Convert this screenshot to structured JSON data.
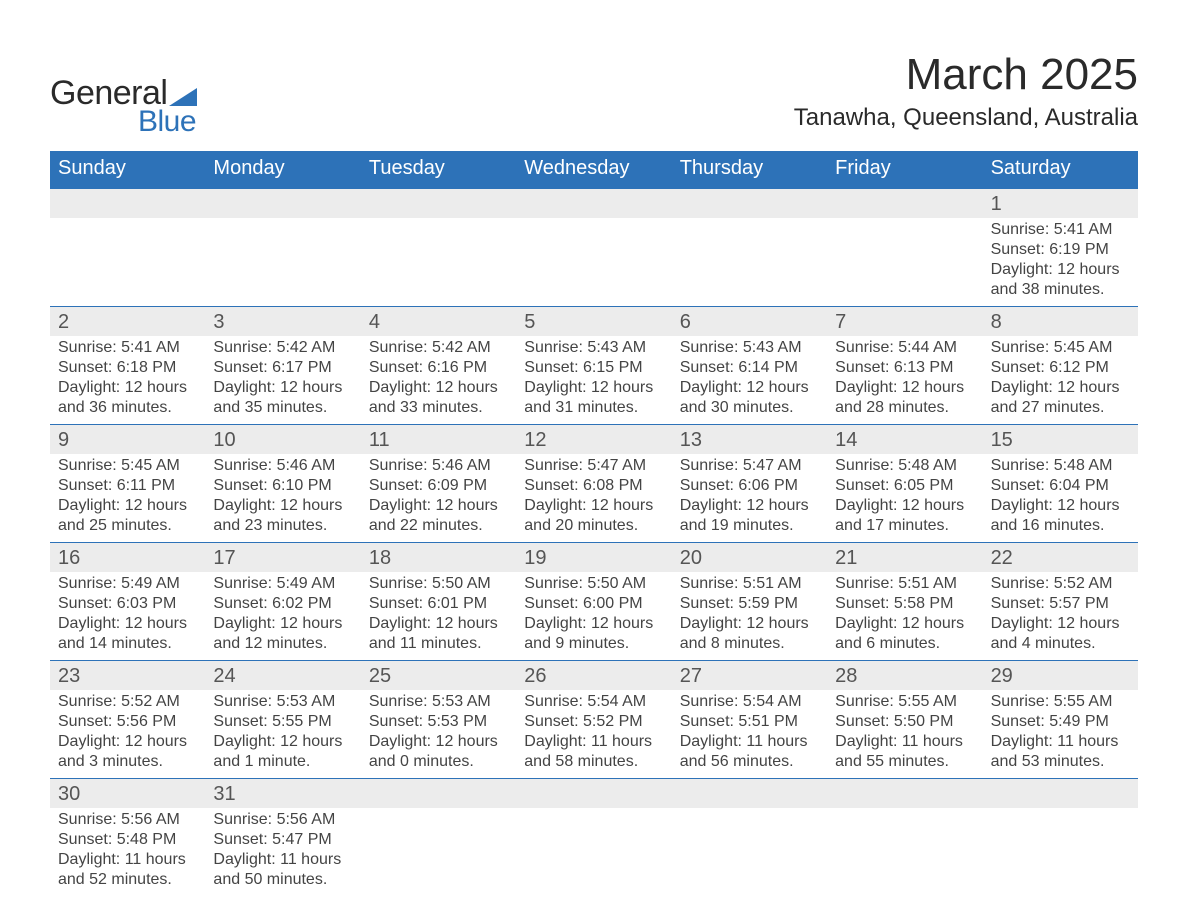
{
  "brand": {
    "word1": "General",
    "word2": "Blue",
    "accent_color": "#2d72b8"
  },
  "title": {
    "month": "March 2025",
    "location": "Tanawha, Queensland, Australia"
  },
  "calendar": {
    "type": "table",
    "columns": [
      "Sunday",
      "Monday",
      "Tuesday",
      "Wednesday",
      "Thursday",
      "Friday",
      "Saturday"
    ],
    "header_bg": "#2d72b8",
    "header_fg": "#ffffff",
    "daynum_bg": "#ececec",
    "divider_color": "#2d72b8",
    "text_color": "#444444",
    "daynum_color": "#555555",
    "title_fontsize": 44,
    "location_fontsize": 24,
    "header_fontsize": 20,
    "daynum_fontsize": 20,
    "body_fontsize": 16,
    "first_day_grid_index": 6,
    "days": [
      {
        "n": "1",
        "sunrise": "5:41 AM",
        "sunset": "6:19 PM",
        "daylight_h": "12",
        "daylight_m": "38"
      },
      {
        "n": "2",
        "sunrise": "5:41 AM",
        "sunset": "6:18 PM",
        "daylight_h": "12",
        "daylight_m": "36"
      },
      {
        "n": "3",
        "sunrise": "5:42 AM",
        "sunset": "6:17 PM",
        "daylight_h": "12",
        "daylight_m": "35"
      },
      {
        "n": "4",
        "sunrise": "5:42 AM",
        "sunset": "6:16 PM",
        "daylight_h": "12",
        "daylight_m": "33"
      },
      {
        "n": "5",
        "sunrise": "5:43 AM",
        "sunset": "6:15 PM",
        "daylight_h": "12",
        "daylight_m": "31"
      },
      {
        "n": "6",
        "sunrise": "5:43 AM",
        "sunset": "6:14 PM",
        "daylight_h": "12",
        "daylight_m": "30"
      },
      {
        "n": "7",
        "sunrise": "5:44 AM",
        "sunset": "6:13 PM",
        "daylight_h": "12",
        "daylight_m": "28"
      },
      {
        "n": "8",
        "sunrise": "5:45 AM",
        "sunset": "6:12 PM",
        "daylight_h": "12",
        "daylight_m": "27"
      },
      {
        "n": "9",
        "sunrise": "5:45 AM",
        "sunset": "6:11 PM",
        "daylight_h": "12",
        "daylight_m": "25"
      },
      {
        "n": "10",
        "sunrise": "5:46 AM",
        "sunset": "6:10 PM",
        "daylight_h": "12",
        "daylight_m": "23"
      },
      {
        "n": "11",
        "sunrise": "5:46 AM",
        "sunset": "6:09 PM",
        "daylight_h": "12",
        "daylight_m": "22"
      },
      {
        "n": "12",
        "sunrise": "5:47 AM",
        "sunset": "6:08 PM",
        "daylight_h": "12",
        "daylight_m": "20"
      },
      {
        "n": "13",
        "sunrise": "5:47 AM",
        "sunset": "6:06 PM",
        "daylight_h": "12",
        "daylight_m": "19"
      },
      {
        "n": "14",
        "sunrise": "5:48 AM",
        "sunset": "6:05 PM",
        "daylight_h": "12",
        "daylight_m": "17"
      },
      {
        "n": "15",
        "sunrise": "5:48 AM",
        "sunset": "6:04 PM",
        "daylight_h": "12",
        "daylight_m": "16"
      },
      {
        "n": "16",
        "sunrise": "5:49 AM",
        "sunset": "6:03 PM",
        "daylight_h": "12",
        "daylight_m": "14"
      },
      {
        "n": "17",
        "sunrise": "5:49 AM",
        "sunset": "6:02 PM",
        "daylight_h": "12",
        "daylight_m": "12"
      },
      {
        "n": "18",
        "sunrise": "5:50 AM",
        "sunset": "6:01 PM",
        "daylight_h": "12",
        "daylight_m": "11"
      },
      {
        "n": "19",
        "sunrise": "5:50 AM",
        "sunset": "6:00 PM",
        "daylight_h": "12",
        "daylight_m": "9"
      },
      {
        "n": "20",
        "sunrise": "5:51 AM",
        "sunset": "5:59 PM",
        "daylight_h": "12",
        "daylight_m": "8"
      },
      {
        "n": "21",
        "sunrise": "5:51 AM",
        "sunset": "5:58 PM",
        "daylight_h": "12",
        "daylight_m": "6"
      },
      {
        "n": "22",
        "sunrise": "5:52 AM",
        "sunset": "5:57 PM",
        "daylight_h": "12",
        "daylight_m": "4"
      },
      {
        "n": "23",
        "sunrise": "5:52 AM",
        "sunset": "5:56 PM",
        "daylight_h": "12",
        "daylight_m": "3"
      },
      {
        "n": "24",
        "sunrise": "5:53 AM",
        "sunset": "5:55 PM",
        "daylight_h": "12",
        "daylight_m": "1"
      },
      {
        "n": "25",
        "sunrise": "5:53 AM",
        "sunset": "5:53 PM",
        "daylight_h": "12",
        "daylight_m": "0"
      },
      {
        "n": "26",
        "sunrise": "5:54 AM",
        "sunset": "5:52 PM",
        "daylight_h": "11",
        "daylight_m": "58"
      },
      {
        "n": "27",
        "sunrise": "5:54 AM",
        "sunset": "5:51 PM",
        "daylight_h": "11",
        "daylight_m": "56"
      },
      {
        "n": "28",
        "sunrise": "5:55 AM",
        "sunset": "5:50 PM",
        "daylight_h": "11",
        "daylight_m": "55"
      },
      {
        "n": "29",
        "sunrise": "5:55 AM",
        "sunset": "5:49 PM",
        "daylight_h": "11",
        "daylight_m": "53"
      },
      {
        "n": "30",
        "sunrise": "5:56 AM",
        "sunset": "5:48 PM",
        "daylight_h": "11",
        "daylight_m": "52"
      },
      {
        "n": "31",
        "sunrise": "5:56 AM",
        "sunset": "5:47 PM",
        "daylight_h": "11",
        "daylight_m": "50"
      }
    ],
    "labels": {
      "sunrise_prefix": "Sunrise: ",
      "sunset_prefix": "Sunset: ",
      "daylight_prefix": "Daylight: ",
      "hours_word": " hours",
      "and_word": "and ",
      "minute_singular": " minute.",
      "minutes_plural": " minutes."
    }
  }
}
